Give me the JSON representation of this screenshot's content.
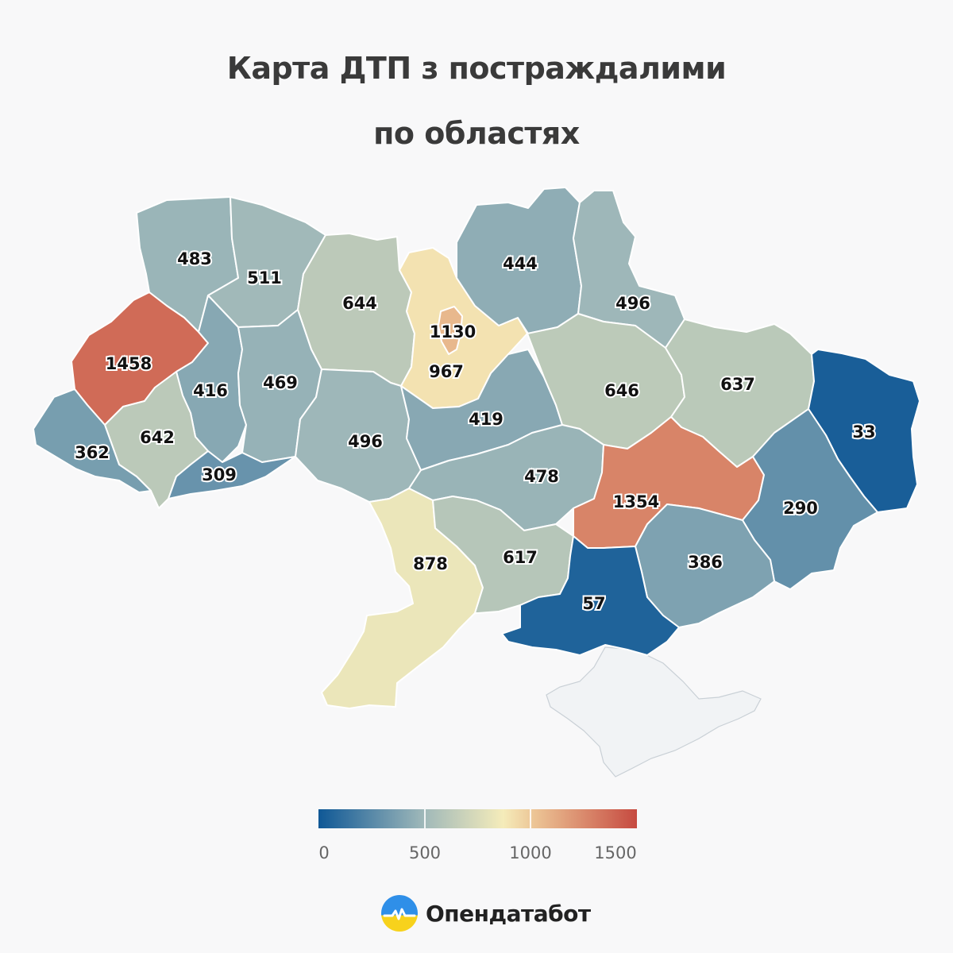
{
  "title_line1": "Карта ДТП з постраждалими",
  "title_line2": "по областях",
  "chart_data": {
    "type": "choropleth",
    "title": "Карта ДТП з постраждалими по областях",
    "color_scale": {
      "min": 0,
      "max": 1600,
      "ticks": [
        "0",
        "500",
        "1000",
        "1500"
      ],
      "colors": [
        "#0f5896",
        "#9fb8b9",
        "#f5ecba",
        "#ecc495",
        "#c64a40"
      ]
    },
    "regions": [
      {
        "id": "volyn",
        "value": 483
      },
      {
        "id": "rivne",
        "value": 511
      },
      {
        "id": "zhytomyr",
        "value": 644
      },
      {
        "id": "kyiv-oblast",
        "value": 967
      },
      {
        "id": "kyiv-city",
        "value": 1130
      },
      {
        "id": "chernihiv",
        "value": 444
      },
      {
        "id": "sumy",
        "value": 496
      },
      {
        "id": "lviv",
        "value": 1458
      },
      {
        "id": "ternopil",
        "value": 416
      },
      {
        "id": "khmelnytskyi",
        "value": 469
      },
      {
        "id": "ivano-frankivsk",
        "value": 642
      },
      {
        "id": "zakarpattia",
        "value": 362
      },
      {
        "id": "chernivtsi",
        "value": 309
      },
      {
        "id": "vinnytsia",
        "value": 496
      },
      {
        "id": "cherkasy",
        "value": 419
      },
      {
        "id": "poltava",
        "value": 646
      },
      {
        "id": "kharkiv",
        "value": 637
      },
      {
        "id": "luhansk",
        "value": 33
      },
      {
        "id": "kirovohrad",
        "value": 478
      },
      {
        "id": "dnipropetrovsk",
        "value": 1354
      },
      {
        "id": "donetsk",
        "value": 290
      },
      {
        "id": "zaporizhzhia",
        "value": 386
      },
      {
        "id": "odesa",
        "value": 878
      },
      {
        "id": "mykolaiv",
        "value": 617
      },
      {
        "id": "kherson",
        "value": 57
      }
    ]
  },
  "logo": {
    "text": "Опендатабот"
  }
}
